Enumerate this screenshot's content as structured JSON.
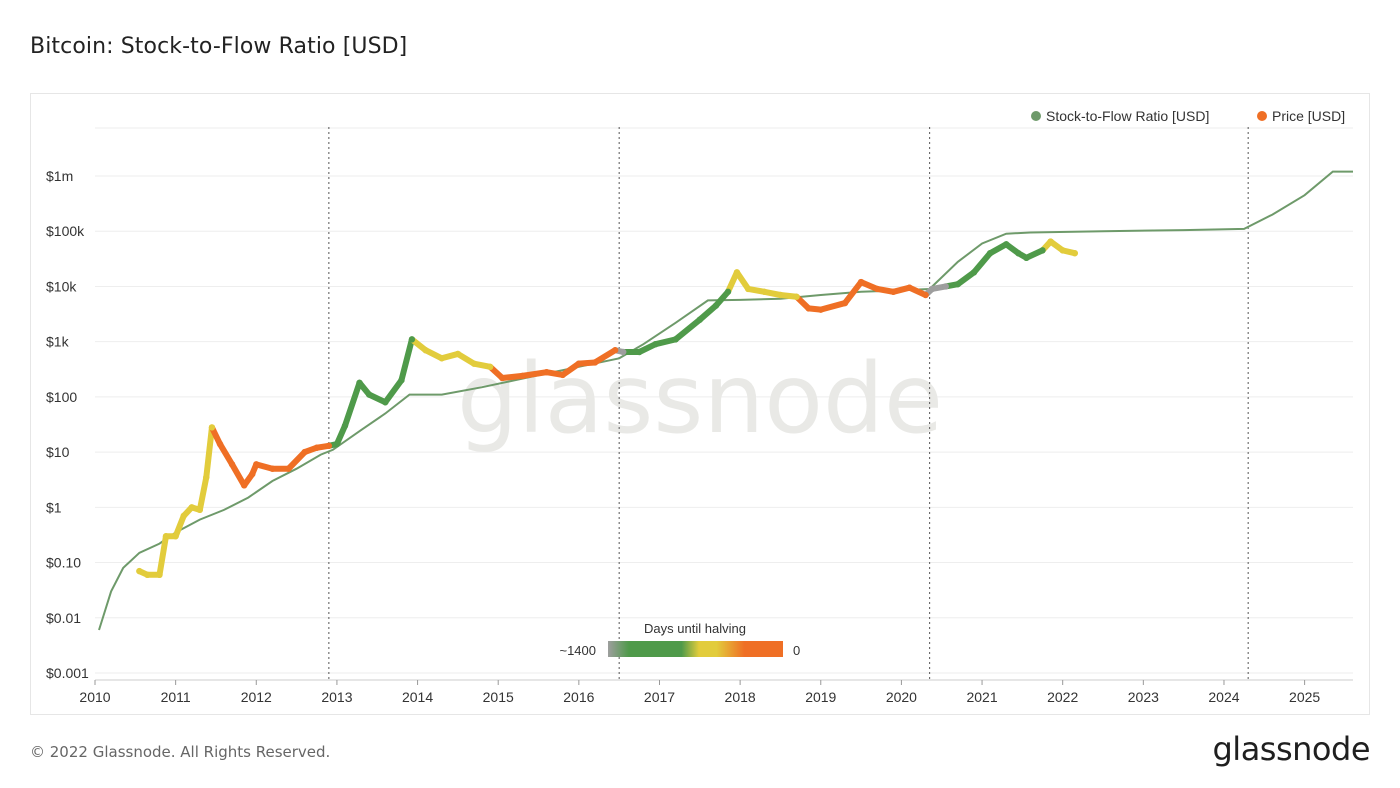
{
  "header": {
    "title": "Bitcoin: Stock-to-Flow Ratio [USD]"
  },
  "footer": {
    "copyright": "© 2022 Glassnode. All Rights Reserved.",
    "logo": "glassnode"
  },
  "watermark": "glassnode",
  "chart_data": {
    "type": "line",
    "title": "Bitcoin: Stock-to-Flow Ratio [USD]",
    "y_scale": "log",
    "ylim": [
      0.001,
      1000000
    ],
    "y_ticks": [
      {
        "value": 0.001,
        "label": "$0.001"
      },
      {
        "value": 0.01,
        "label": "$0.01"
      },
      {
        "value": 0.1,
        "label": "$0.10"
      },
      {
        "value": 1,
        "label": "$1"
      },
      {
        "value": 10,
        "label": "$10"
      },
      {
        "value": 100,
        "label": "$100"
      },
      {
        "value": 1000,
        "label": "$1k"
      },
      {
        "value": 10000,
        "label": "$10k"
      },
      {
        "value": 100000,
        "label": "$100k"
      },
      {
        "value": 1000000,
        "label": "$1m"
      }
    ],
    "xlim": [
      2010.0,
      2025.6
    ],
    "x_ticks": [
      "2010",
      "2011",
      "2012",
      "2013",
      "2014",
      "2015",
      "2016",
      "2017",
      "2018",
      "2019",
      "2020",
      "2021",
      "2022",
      "2023",
      "2024",
      "2025"
    ],
    "grid": true,
    "legend_position": "top-right",
    "halving_dates": [
      2012.9,
      2016.5,
      2020.35,
      2024.3
    ],
    "colorbar": {
      "title": "Days until halving",
      "min_label": "~1400",
      "max_label": "0"
    },
    "colors": {
      "gray": "#9e9e9e",
      "green": "#4f9a4a",
      "yellow": "#e2cc3c",
      "orange": "#ef6f25",
      "s2f_line": "#6e9a6a"
    },
    "series": [
      {
        "name": "Stock-to-Flow Ratio [USD]",
        "color": "#6e9a6a",
        "points": [
          [
            2010.05,
            0.006
          ],
          [
            2010.2,
            0.03
          ],
          [
            2010.35,
            0.08
          ],
          [
            2010.55,
            0.15
          ],
          [
            2010.8,
            0.22
          ],
          [
            2011.0,
            0.35
          ],
          [
            2011.3,
            0.6
          ],
          [
            2011.6,
            0.9
          ],
          [
            2011.9,
            1.5
          ],
          [
            2012.2,
            3
          ],
          [
            2012.5,
            5
          ],
          [
            2012.8,
            9
          ],
          [
            2012.95,
            11
          ],
          [
            2013.3,
            25
          ],
          [
            2013.6,
            50
          ],
          [
            2013.9,
            110
          ],
          [
            2014.3,
            110
          ],
          [
            2014.8,
            150
          ],
          [
            2015.4,
            230
          ],
          [
            2016.0,
            350
          ],
          [
            2016.5,
            500
          ],
          [
            2016.8,
            900
          ],
          [
            2017.2,
            2200
          ],
          [
            2017.6,
            5600
          ],
          [
            2018.0,
            5700
          ],
          [
            2018.5,
            6000
          ],
          [
            2019.0,
            7000
          ],
          [
            2019.5,
            8000
          ],
          [
            2020.0,
            8500
          ],
          [
            2020.35,
            9000
          ],
          [
            2020.7,
            28000
          ],
          [
            2021.0,
            60000
          ],
          [
            2021.3,
            90000
          ],
          [
            2021.6,
            95000
          ],
          [
            2022.5,
            100000
          ],
          [
            2023.5,
            105000
          ],
          [
            2024.25,
            110000
          ],
          [
            2024.6,
            200000
          ],
          [
            2025.0,
            450000
          ],
          [
            2025.35,
            1200000
          ],
          [
            2025.6,
            1200000
          ]
        ]
      },
      {
        "name": "Price [USD]",
        "color": "#ef6f25",
        "points": [
          [
            2010.55,
            0.07,
            "yellow"
          ],
          [
            2010.65,
            0.06,
            "yellow"
          ],
          [
            2010.8,
            0.06,
            "yellow"
          ],
          [
            2010.88,
            0.3,
            "yellow"
          ],
          [
            2011.0,
            0.3,
            "yellow"
          ],
          [
            2011.1,
            0.7,
            "yellow"
          ],
          [
            2011.2,
            1.0,
            "yellow"
          ],
          [
            2011.3,
            0.9,
            "yellow"
          ],
          [
            2011.38,
            3.5,
            "yellow"
          ],
          [
            2011.45,
            28,
            "yellow"
          ],
          [
            2011.55,
            14,
            "orange"
          ],
          [
            2011.7,
            6,
            "orange"
          ],
          [
            2011.85,
            2.5,
            "orange"
          ],
          [
            2011.95,
            4,
            "orange"
          ],
          [
            2012.0,
            6,
            "orange"
          ],
          [
            2012.2,
            5,
            "orange"
          ],
          [
            2012.4,
            5,
            "orange"
          ],
          [
            2012.6,
            10,
            "orange"
          ],
          [
            2012.75,
            12,
            "orange"
          ],
          [
            2012.9,
            13,
            "orange"
          ],
          [
            2013.0,
            14,
            "green"
          ],
          [
            2013.1,
            30,
            "green"
          ],
          [
            2013.28,
            180,
            "green"
          ],
          [
            2013.4,
            110,
            "green"
          ],
          [
            2013.6,
            80,
            "green"
          ],
          [
            2013.8,
            200,
            "green"
          ],
          [
            2013.93,
            1100,
            "green"
          ],
          [
            2014.1,
            700,
            "yellow"
          ],
          [
            2014.3,
            500,
            "yellow"
          ],
          [
            2014.5,
            600,
            "yellow"
          ],
          [
            2014.7,
            400,
            "yellow"
          ],
          [
            2014.9,
            350,
            "yellow"
          ],
          [
            2015.05,
            220,
            "orange"
          ],
          [
            2015.3,
            240,
            "orange"
          ],
          [
            2015.6,
            280,
            "orange"
          ],
          [
            2015.8,
            250,
            "orange"
          ],
          [
            2016.0,
            400,
            "orange"
          ],
          [
            2016.2,
            420,
            "orange"
          ],
          [
            2016.45,
            700,
            "orange"
          ],
          [
            2016.55,
            650,
            "gray"
          ],
          [
            2016.75,
            650,
            "green"
          ],
          [
            2016.95,
            900,
            "green"
          ],
          [
            2017.2,
            1100,
            "green"
          ],
          [
            2017.5,
            2500,
            "green"
          ],
          [
            2017.7,
            4500,
            "green"
          ],
          [
            2017.85,
            8000,
            "green"
          ],
          [
            2017.96,
            18000,
            "yellow"
          ],
          [
            2018.1,
            9000,
            "yellow"
          ],
          [
            2018.3,
            8000,
            "yellow"
          ],
          [
            2018.5,
            7000,
            "yellow"
          ],
          [
            2018.7,
            6500,
            "yellow"
          ],
          [
            2018.85,
            4000,
            "orange"
          ],
          [
            2019.0,
            3800,
            "orange"
          ],
          [
            2019.3,
            5000,
            "orange"
          ],
          [
            2019.5,
            12000,
            "orange"
          ],
          [
            2019.7,
            9000,
            "orange"
          ],
          [
            2019.9,
            8000,
            "orange"
          ],
          [
            2020.1,
            9500,
            "orange"
          ],
          [
            2020.3,
            7000,
            "orange"
          ],
          [
            2020.38,
            9000,
            "gray"
          ],
          [
            2020.55,
            10000,
            "gray"
          ],
          [
            2020.7,
            11000,
            "green"
          ],
          [
            2020.9,
            18000,
            "green"
          ],
          [
            2021.1,
            40000,
            "green"
          ],
          [
            2021.3,
            58000,
            "green"
          ],
          [
            2021.45,
            40000,
            "green"
          ],
          [
            2021.55,
            33000,
            "green"
          ],
          [
            2021.75,
            45000,
            "green"
          ],
          [
            2021.85,
            65000,
            "yellow"
          ],
          [
            2022.0,
            45000,
            "yellow"
          ],
          [
            2022.15,
            40000,
            "yellow"
          ]
        ]
      }
    ]
  }
}
